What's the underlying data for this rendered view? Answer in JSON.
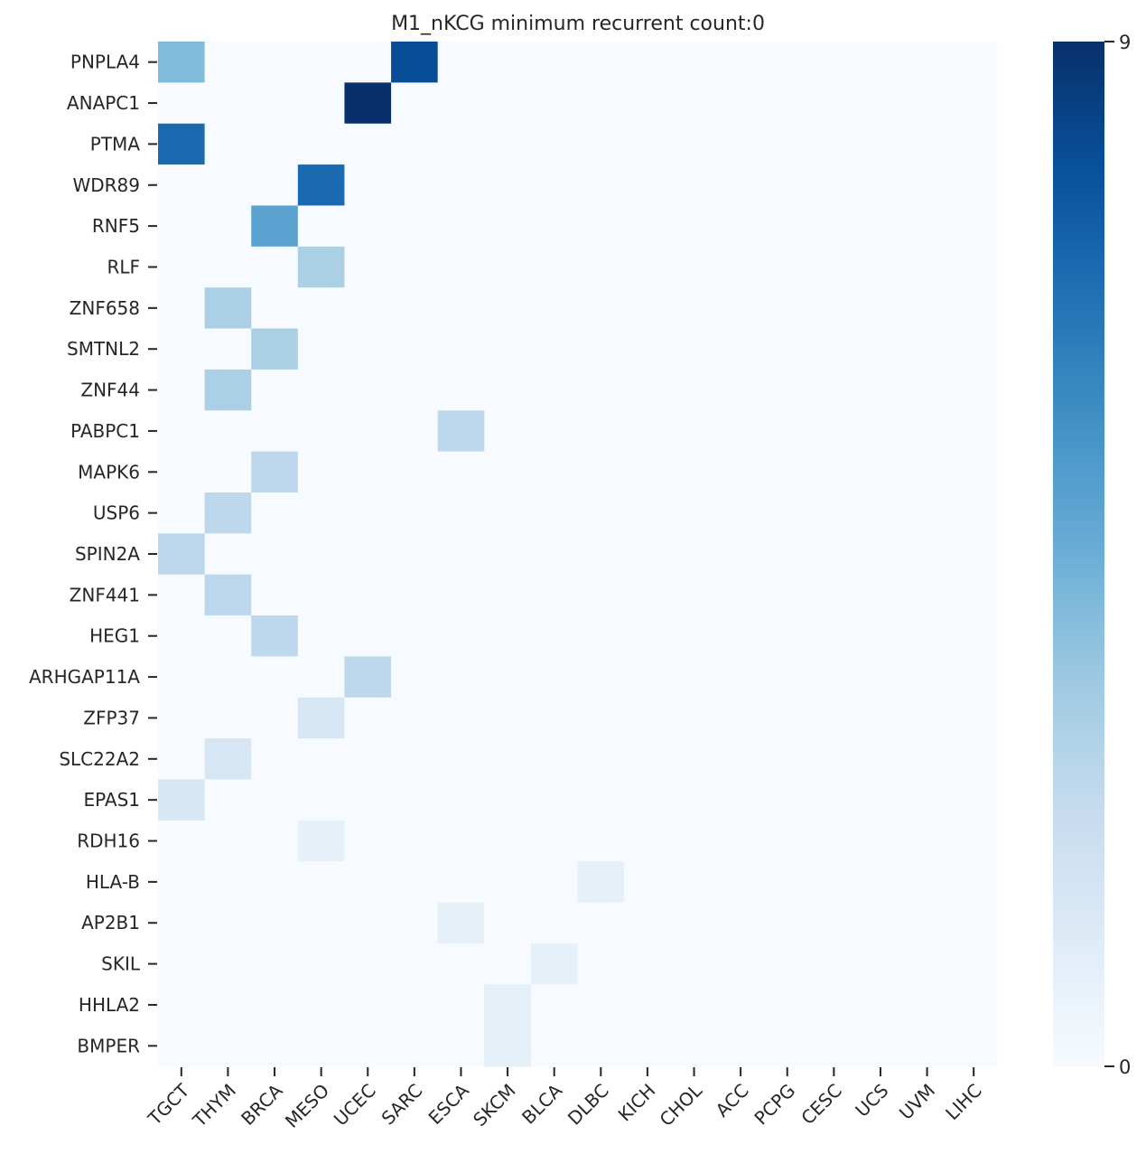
{
  "chart_data": {
    "type": "heatmap",
    "title": "M1_nKCG minimum recurrent count:0",
    "xlabel": "",
    "ylabel": "",
    "x_categories": [
      "TGCT",
      "THYM",
      "BRCA",
      "MESO",
      "UCEC",
      "SARC",
      "ESCA",
      "SKCM",
      "BLCA",
      "DLBC",
      "KICH",
      "CHOL",
      "ACC",
      "PCPG",
      "CESC",
      "UCS",
      "UVM",
      "LIHC"
    ],
    "y_categories": [
      "PNPLA4",
      "ANAPC1",
      "PTMA",
      "WDR89",
      "RNF5",
      "RLF",
      "ZNF658",
      "SMTNL2",
      "ZNF44",
      "PABPC1",
      "MAPK6",
      "USP6",
      "SPIN2A",
      "ZNF441",
      "HEG1",
      "ARHGAP11A",
      "ZFP37",
      "SLC22A2",
      "EPAS1",
      "RDH16",
      "HLA-B",
      "AP2B1",
      "SKIL",
      "HHLA2",
      "BMPER"
    ],
    "values": [
      [
        4,
        0,
        0,
        0,
        0,
        8,
        0,
        0,
        0,
        0,
        0,
        0,
        0,
        0,
        0,
        0,
        0,
        0
      ],
      [
        0,
        0,
        0,
        0,
        9,
        0,
        0,
        0,
        0,
        0,
        0,
        0,
        0,
        0,
        0,
        0,
        0,
        0
      ],
      [
        7,
        0,
        0,
        0,
        0,
        0,
        0,
        0,
        0,
        0,
        0,
        0,
        0,
        0,
        0,
        0,
        0,
        0
      ],
      [
        0,
        0,
        0,
        7,
        0,
        0,
        0,
        0,
        0,
        0,
        0,
        0,
        0,
        0,
        0,
        0,
        0,
        0
      ],
      [
        0,
        0,
        5,
        0,
        0,
        0,
        0,
        0,
        0,
        0,
        0,
        0,
        0,
        0,
        0,
        0,
        0,
        0
      ],
      [
        0,
        0,
        0,
        3,
        0,
        0,
        0,
        0,
        0,
        0,
        0,
        0,
        0,
        0,
        0,
        0,
        0,
        0
      ],
      [
        0,
        3,
        0,
        0,
        0,
        0,
        0,
        0,
        0,
        0,
        0,
        0,
        0,
        0,
        0,
        0,
        0,
        0
      ],
      [
        0,
        0,
        3,
        0,
        0,
        0,
        0,
        0,
        0,
        0,
        0,
        0,
        0,
        0,
        0,
        0,
        0,
        0
      ],
      [
        0,
        3,
        0,
        0,
        0,
        0,
        0,
        0,
        0,
        0,
        0,
        0,
        0,
        0,
        0,
        0,
        0,
        0
      ],
      [
        0,
        0,
        0,
        0,
        0,
        0,
        2.5,
        0,
        0,
        0,
        0,
        0,
        0,
        0,
        0,
        0,
        0,
        0
      ],
      [
        0,
        0,
        2.5,
        0,
        0,
        0,
        0,
        0,
        0,
        0,
        0,
        0,
        0,
        0,
        0,
        0,
        0,
        0
      ],
      [
        0,
        2.5,
        0,
        0,
        0,
        0,
        0,
        0,
        0,
        0,
        0,
        0,
        0,
        0,
        0,
        0,
        0,
        0
      ],
      [
        2.5,
        0,
        0,
        0,
        0,
        0,
        0,
        0,
        0,
        0,
        0,
        0,
        0,
        0,
        0,
        0,
        0,
        0
      ],
      [
        0,
        2.5,
        0,
        0,
        0,
        0,
        0,
        0,
        0,
        0,
        0,
        0,
        0,
        0,
        0,
        0,
        0,
        0
      ],
      [
        0,
        0,
        2.5,
        0,
        0,
        0,
        0,
        0,
        0,
        0,
        0,
        0,
        0,
        0,
        0,
        0,
        0,
        0
      ],
      [
        0,
        0,
        0,
        0,
        2.5,
        0,
        0,
        0,
        0,
        0,
        0,
        0,
        0,
        0,
        0,
        0,
        0,
        0
      ],
      [
        0,
        0,
        0,
        1.5,
        0,
        0,
        0,
        0,
        0,
        0,
        0,
        0,
        0,
        0,
        0,
        0,
        0,
        0
      ],
      [
        0,
        1.5,
        0,
        0,
        0,
        0,
        0,
        0,
        0,
        0,
        0,
        0,
        0,
        0,
        0,
        0,
        0,
        0
      ],
      [
        1.5,
        0,
        0,
        0,
        0,
        0,
        0,
        0,
        0,
        0,
        0,
        0,
        0,
        0,
        0,
        0,
        0,
        0
      ],
      [
        0,
        0,
        0,
        0.8,
        0,
        0,
        0,
        0,
        0,
        0,
        0,
        0,
        0,
        0,
        0,
        0,
        0,
        0
      ],
      [
        0,
        0,
        0,
        0,
        0,
        0,
        0,
        0,
        0,
        0.8,
        0,
        0,
        0,
        0,
        0,
        0,
        0,
        0
      ],
      [
        0,
        0,
        0,
        0,
        0,
        0,
        0.8,
        0,
        0,
        0,
        0,
        0,
        0,
        0,
        0,
        0,
        0,
        0
      ],
      [
        0,
        0,
        0,
        0,
        0,
        0,
        0,
        0,
        0.8,
        0,
        0,
        0,
        0,
        0,
        0,
        0,
        0,
        0
      ],
      [
        0,
        0,
        0,
        0,
        0,
        0,
        0,
        0.8,
        0,
        0,
        0,
        0,
        0,
        0,
        0,
        0,
        0,
        0
      ],
      [
        0,
        0,
        0,
        0,
        0,
        0,
        0,
        0.8,
        0,
        0,
        0,
        0,
        0,
        0,
        0,
        0,
        0,
        0
      ]
    ],
    "colorbar": {
      "colormap": "Blues",
      "min": 0,
      "max": 9,
      "tick_labels": [
        "0",
        "9"
      ]
    },
    "grid": false,
    "legend": "colorbar-right"
  }
}
